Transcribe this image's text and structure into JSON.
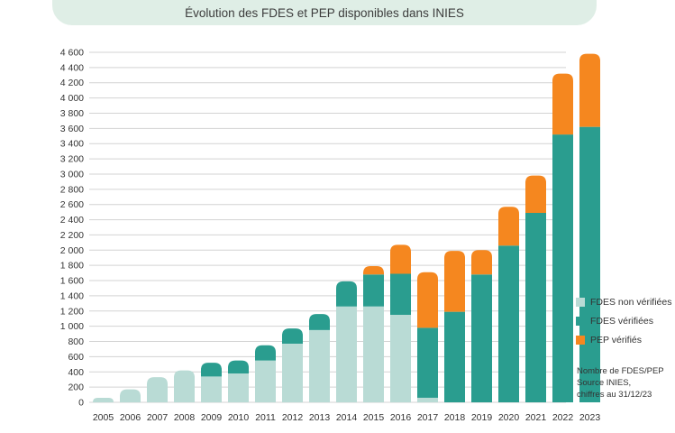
{
  "title": "Évolution des FDES et PEP disponibles dans INIES",
  "legend": {
    "fdes_non_verifiees": "FDES non vérifiées",
    "fdes_verifiees": "FDES vérifiées",
    "pep_verifies": "PEP vérifiés"
  },
  "note": {
    "line1": "Nombre de FDES/PEP",
    "line2": "Source INIES,",
    "line3": "chiffres au 31/12/23"
  },
  "colors": {
    "fdes_non_verifiees": "#b9dbd5",
    "fdes_verifiees": "#2a9d8f",
    "pep_verifies": "#f5871f",
    "grid": "#d3d3d3",
    "banner": "#dfeee6"
  },
  "chart_data": {
    "type": "bar",
    "stacked": true,
    "title": "Évolution des FDES et PEP disponibles dans INIES",
    "categories": [
      "2005",
      "2006",
      "2007",
      "2008",
      "2009",
      "2010",
      "2011",
      "2012",
      "2013",
      "2014",
      "2015",
      "2016",
      "2017",
      "2018",
      "2019",
      "2020",
      "2021",
      "2022",
      "2023"
    ],
    "series": [
      {
        "name": "FDES non vérifiées",
        "values": [
          60,
          170,
          330,
          420,
          340,
          380,
          550,
          770,
          950,
          1260,
          1260,
          1150,
          60,
          0,
          0,
          0,
          0,
          0,
          0
        ]
      },
      {
        "name": "FDES vérifiées",
        "values": [
          0,
          0,
          0,
          0,
          180,
          170,
          200,
          200,
          210,
          330,
          420,
          540,
          920,
          1190,
          1680,
          2060,
          2490,
          3520,
          3620
        ]
      },
      {
        "name": "PEP vérifiés",
        "values": [
          0,
          0,
          0,
          0,
          0,
          0,
          0,
          0,
          0,
          0,
          110,
          380,
          730,
          800,
          320,
          510,
          490,
          800,
          960
        ]
      }
    ],
    "xlabel": "",
    "ylabel": "",
    "ylim": [
      0,
      4600
    ],
    "yticks": [
      0,
      200,
      400,
      600,
      800,
      1000,
      1200,
      1400,
      1600,
      1800,
      2000,
      2200,
      2400,
      2600,
      2800,
      3000,
      3200,
      3400,
      3600,
      3800,
      4000,
      4200,
      4400,
      4600
    ],
    "ytick_labels": [
      "0",
      "200",
      "400",
      "600",
      "800",
      "1 000",
      "1 200",
      "1 400",
      "1 600",
      "1 800",
      "2 000",
      "2 200",
      "2 400",
      "2 600",
      "2 800",
      "3 000",
      "3 200",
      "3 400",
      "3 600",
      "3 800",
      "4 000",
      "4 200",
      "4 400",
      "4 600"
    ],
    "grid": true,
    "legend_position": "right"
  }
}
